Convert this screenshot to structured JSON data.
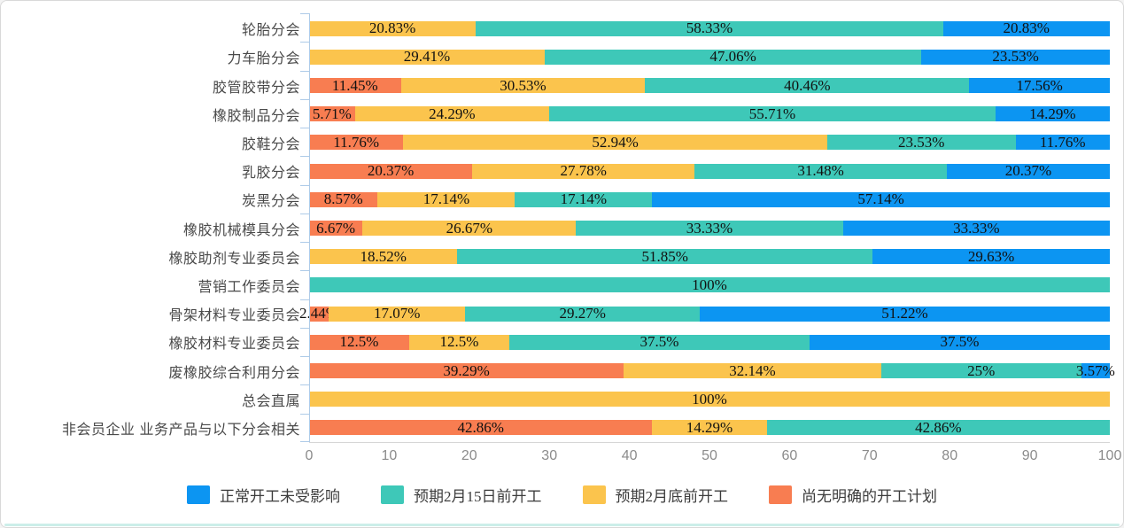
{
  "colors": {
    "series_blue": "#0c95f2",
    "series_teal": "#3ec8b8",
    "series_yellow": "#fbc44d",
    "series_orange": "#f87d51",
    "y_axis": "#aecbe8",
    "x_axis_line": "#d6d6d6",
    "tick_text": "#8b8b8b",
    "category_text": "#4a4a4a",
    "data_label_text": "#111111",
    "panel_border": "#d9d9d9",
    "background": "#ffffff"
  },
  "chart_data": {
    "type": "bar",
    "stacked": true,
    "orientation": "horizontal",
    "grid": false,
    "legend_position": "bottom",
    "value_suffix": "%",
    "xlim": [
      0,
      100
    ],
    "x_ticks": [
      0,
      10,
      20,
      30,
      40,
      50,
      60,
      70,
      80,
      90,
      100
    ],
    "categories": [
      "轮胎分会",
      "力车胎分会",
      "胶管胶带分会",
      "橡胶制品分会",
      "胶鞋分会",
      "乳胶分会",
      "炭黑分会",
      "橡胶机械模具分会",
      "橡胶助剂专业委员会",
      "营销工作委员会",
      "骨架材料专业委员会",
      "橡胶材料专业委员会",
      "废橡胶综合利用分会",
      "总会直属",
      "非会员企业 业务产品与以下分会相关"
    ],
    "series": [
      {
        "name": "正常开工未受影响",
        "color": "#0c95f2",
        "values": [
          20.83,
          23.53,
          17.56,
          14.29,
          11.76,
          20.37,
          57.14,
          33.33,
          29.63,
          0,
          51.22,
          37.5,
          3.57,
          0,
          0
        ]
      },
      {
        "name": "预期2月15日前开工",
        "color": "#3ec8b8",
        "values": [
          58.33,
          47.06,
          40.46,
          55.71,
          23.53,
          31.48,
          17.14,
          33.33,
          51.85,
          100,
          29.27,
          37.5,
          25,
          0,
          42.86
        ]
      },
      {
        "name": "预期2月底前开工",
        "color": "#fbc44d",
        "values": [
          20.83,
          29.41,
          30.53,
          24.29,
          52.94,
          27.78,
          17.14,
          26.67,
          18.52,
          0,
          17.07,
          12.5,
          32.14,
          100,
          14.29
        ]
      },
      {
        "name": "尚无明确的开工计划",
        "color": "#f87d51",
        "values": [
          0,
          0,
          11.45,
          5.71,
          11.76,
          20.37,
          8.57,
          6.67,
          0,
          0,
          2.44,
          12.5,
          39.29,
          0,
          42.86
        ]
      }
    ],
    "stack_order": [
      3,
      2,
      1,
      0
    ]
  }
}
